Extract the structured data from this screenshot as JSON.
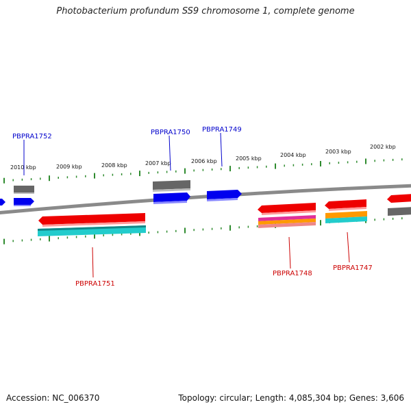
{
  "title": "Photobacterium profundum SS9 chromosome 1, complete genome",
  "footer": {
    "accession": "Accession: NC_006370",
    "summary": "Topology: circular; Length: 4,085,304 bp; Genes: 3,606"
  },
  "colors": {
    "backbone": "#8a8a8a",
    "tick_green": "#2e8b2e",
    "forward_gene": "#0000ee",
    "forward_label": "#0000cc",
    "reverse_gene": "#ee0000",
    "reverse_label": "#cc0000",
    "grey_feature": "#666666",
    "cyan_feature": "#22cccc",
    "magenta_feature": "#e0309a",
    "orange_feature": "#ff9900",
    "pink_feature": "#ee8888"
  },
  "scale_labels": [
    "2010 kbp",
    "2009 kbp",
    "2008 kbp",
    "2007 kbp",
    "2006 kbp",
    "2005 kbp",
    "2004 kbp",
    "2003 kbp",
    "2002 kbp"
  ],
  "gene_labels": {
    "forward": [
      "PBPRA1752",
      "PBPRA1750",
      "PBPRA1749"
    ],
    "reverse": [
      "PBPRA1751",
      "PBPRA1748",
      "PBPRA1747"
    ]
  }
}
